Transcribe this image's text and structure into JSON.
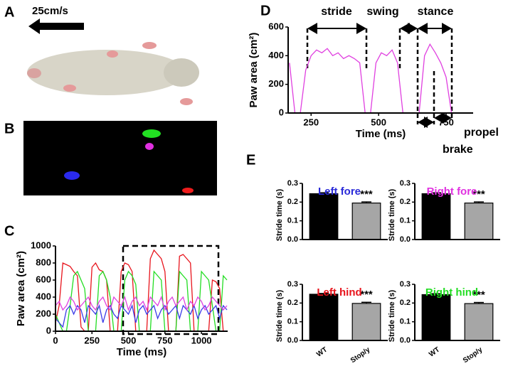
{
  "figure": {
    "panel_labels": [
      "A",
      "B",
      "C",
      "D",
      "E"
    ],
    "speed_label": "25cm/s"
  },
  "chart_data": [
    {
      "type": "line",
      "ylabel": "Paw area (cm²)",
      "xlabel": "Time (ms)",
      "xlim": [
        0,
        1180
      ],
      "ylim": [
        0,
        1000
      ],
      "xticks": [
        0,
        250,
        500,
        750,
        1000
      ],
      "yticks": [
        0,
        200,
        400,
        600,
        800,
        1000
      ],
      "x": [
        0,
        25,
        50,
        75,
        100,
        125,
        150,
        175,
        200,
        225,
        250,
        275,
        300,
        325,
        350,
        375,
        400,
        425,
        450,
        475,
        500,
        525,
        550,
        575,
        600,
        625,
        650,
        675,
        700,
        725,
        750,
        775,
        800,
        825,
        850,
        875,
        900,
        925,
        950,
        975,
        1000,
        1025,
        1050,
        1075,
        1100,
        1125,
        1150,
        1175
      ],
      "series": [
        {
          "color": "#e8141c",
          "values": [
            100,
            300,
            800,
            780,
            760,
            700,
            650,
            50,
            0,
            0,
            750,
            800,
            720,
            700,
            600,
            0,
            0,
            0,
            700,
            800,
            780,
            700,
            0,
            0,
            0,
            0,
            850,
            950,
            900,
            850,
            700,
            0,
            0,
            0,
            880,
            900,
            850,
            800,
            0,
            0,
            0,
            0,
            0,
            600,
            580,
            500,
            0,
            0
          ]
        },
        {
          "color": "#22dd22",
          "values": [
            200,
            100,
            0,
            0,
            300,
            650,
            700,
            600,
            500,
            0,
            0,
            0,
            650,
            700,
            600,
            400,
            0,
            0,
            0,
            600,
            700,
            650,
            550,
            0,
            0,
            0,
            0,
            700,
            650,
            600,
            0,
            0,
            0,
            0,
            700,
            650,
            600,
            0,
            0,
            0,
            700,
            650,
            600,
            300,
            0,
            0,
            650,
            600
          ]
        },
        {
          "color": "#3a3ae8",
          "values": [
            150,
            100,
            50,
            250,
            300,
            200,
            300,
            250,
            100,
            300,
            250,
            200,
            300,
            100,
            250,
            300,
            200,
            150,
            300,
            250,
            200,
            300,
            100,
            250,
            300,
            200,
            250,
            300,
            150,
            250,
            300,
            200,
            250,
            300,
            150,
            300,
            250,
            200,
            300,
            150,
            250,
            300,
            200,
            250,
            300,
            150,
            300,
            250
          ]
        },
        {
          "color": "#e040e0",
          "values": [
            300,
            350,
            250,
            300,
            400,
            350,
            250,
            300,
            350,
            400,
            300,
            250,
            350,
            400,
            300,
            250,
            400,
            350,
            300,
            400,
            250,
            350,
            400,
            300,
            350,
            250,
            400,
            350,
            300,
            400,
            250,
            350,
            400,
            300,
            350,
            400,
            250,
            350,
            300,
            400,
            350,
            250,
            300,
            400,
            350,
            300,
            250,
            300
          ]
        }
      ]
    },
    {
      "type": "line",
      "ylabel": "Paw area (cm²)",
      "xlabel": "Time (ms)",
      "xlim": [
        165,
        850
      ],
      "ylim": [
        0,
        600
      ],
      "xticks": [
        250,
        500,
        750
      ],
      "yticks": [
        0,
        200,
        400,
        600
      ],
      "x": [
        170,
        190,
        210,
        230,
        250,
        270,
        290,
        310,
        330,
        350,
        370,
        390,
        410,
        430,
        450,
        470,
        490,
        510,
        530,
        550,
        570,
        590,
        610,
        630,
        650,
        670,
        690,
        710,
        730,
        750,
        770,
        790,
        810,
        830,
        850
      ],
      "series": [
        {
          "color": "#e040e0",
          "values": [
            350,
            0,
            0,
            300,
            400,
            440,
            420,
            450,
            400,
            420,
            380,
            400,
            380,
            350,
            0,
            0,
            350,
            420,
            400,
            440,
            350,
            0,
            0,
            0,
            0,
            400,
            480,
            420,
            350,
            250,
            0,
            0,
            0,
            0,
            0
          ]
        }
      ],
      "annotations": [
        "stride",
        "swing",
        "stance",
        "brake",
        "propel"
      ]
    },
    {
      "type": "bar",
      "title": "Left fore",
      "title_color": "#2a2ad8",
      "ylabel": "Stride time (s)",
      "categories": [
        null,
        null
      ],
      "values": [
        0.245,
        0.195
      ],
      "errors": [
        0.005,
        0.006
      ],
      "colors": [
        "#000000",
        "#a6a6a6"
      ],
      "ylim": [
        0,
        0.3
      ],
      "yticks": [
        {
          "value": 0,
          "label": "0.0"
        },
        0.1,
        0.2,
        0.3
      ],
      "annotation": "***"
    },
    {
      "type": "bar",
      "title": "Right fore",
      "title_color": "#e030e0",
      "ylabel": "Stride time (s)",
      "categories": [
        null,
        null
      ],
      "values": [
        0.245,
        0.195
      ],
      "errors": [
        0.005,
        0.006
      ],
      "colors": [
        "#000000",
        "#a6a6a6"
      ],
      "ylim": [
        0,
        0.3
      ],
      "yticks": [
        {
          "value": 0,
          "label": "0.0"
        },
        0.1,
        0.2,
        0.3
      ],
      "annotation": "***"
    },
    {
      "type": "bar",
      "title": "Left hind",
      "title_color": "#e8141c",
      "ylabel": "Stride time (s)",
      "categories": [
        "WT",
        "Stop/y"
      ],
      "values": [
        0.247,
        0.198
      ],
      "errors": [
        0.004,
        0.006
      ],
      "colors": [
        "#000000",
        "#a6a6a6"
      ],
      "ylim": [
        0,
        0.3
      ],
      "yticks": [
        {
          "value": 0,
          "label": "0.0"
        },
        0.1,
        0.2,
        0.3
      ],
      "annotation": "***"
    },
    {
      "type": "bar",
      "title": "Right hind",
      "title_color": "#22dd22",
      "ylabel": "Stride time (s)",
      "categories": [
        "WT",
        "Stop/y"
      ],
      "values": [
        0.245,
        0.197
      ],
      "errors": [
        0.005,
        0.006
      ],
      "colors": [
        "#000000",
        "#a6a6a6"
      ],
      "ylim": [
        0,
        0.3
      ],
      "yticks": [
        {
          "value": 0,
          "label": "0.0"
        },
        0.1,
        0.2,
        0.3
      ],
      "annotation": "***"
    }
  ]
}
